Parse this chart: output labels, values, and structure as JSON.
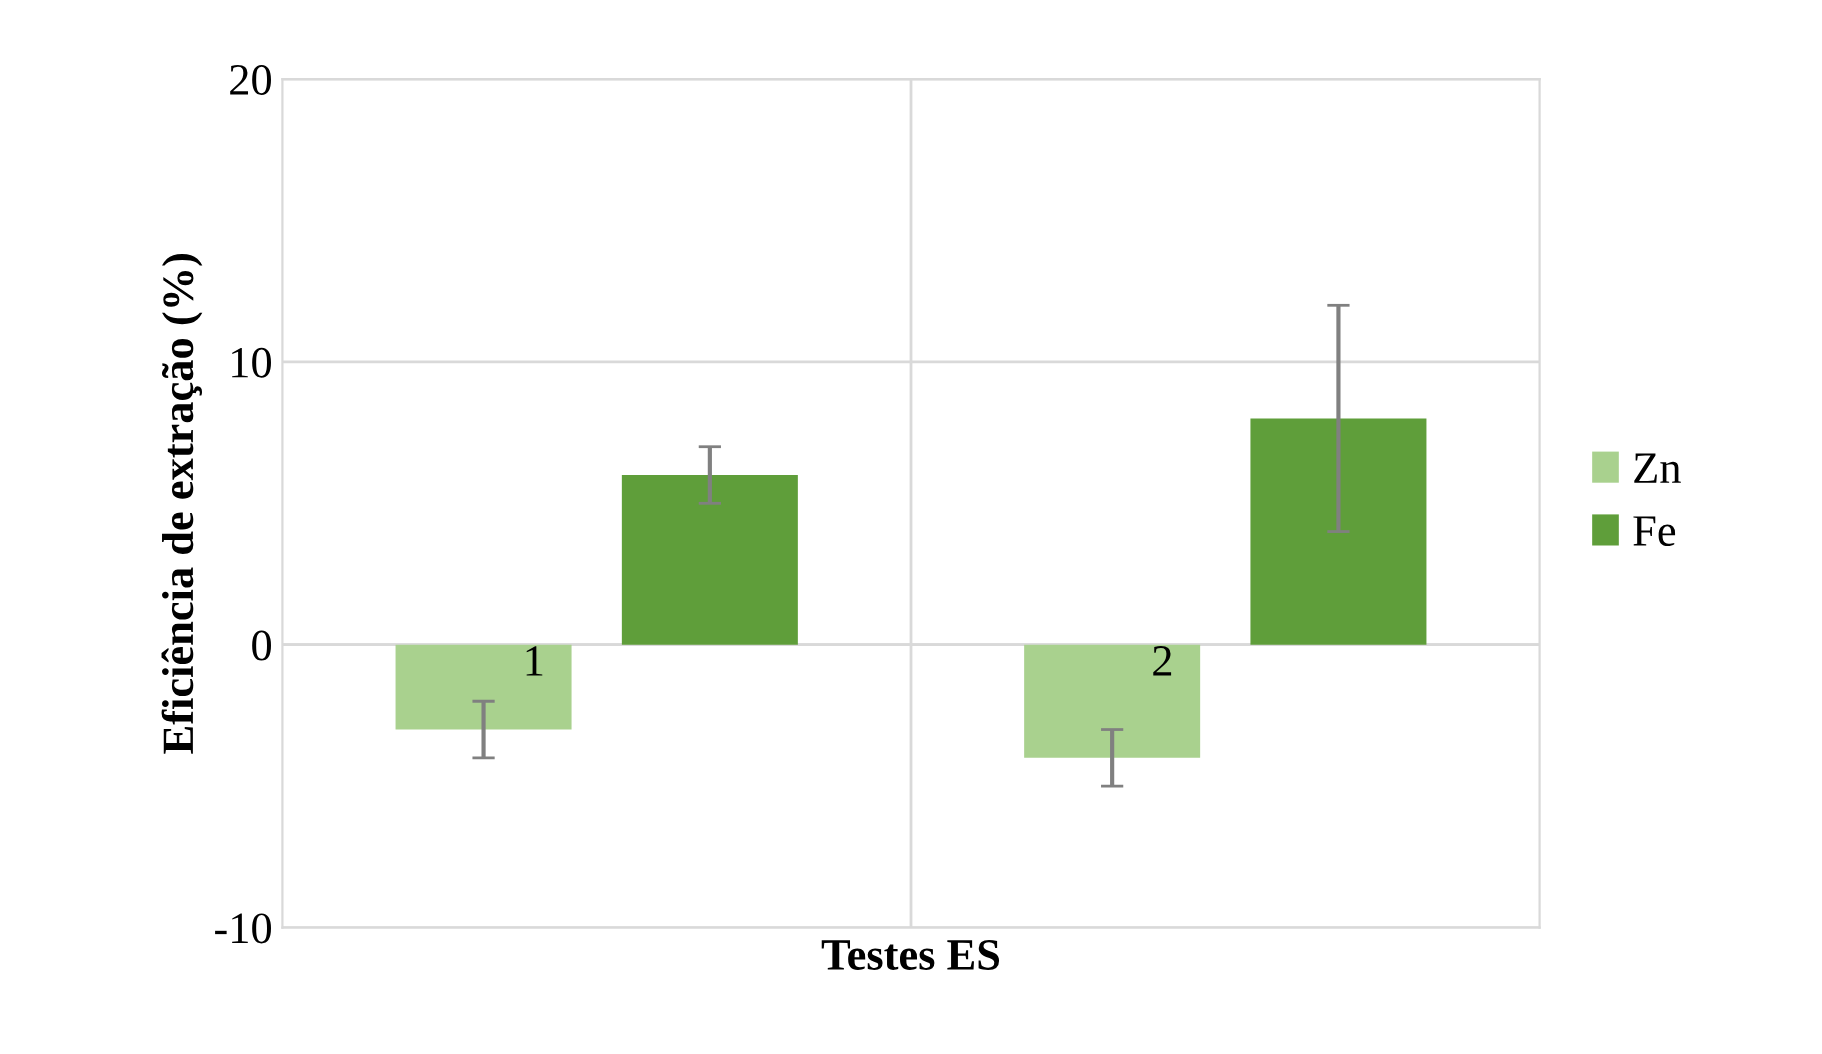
{
  "chart_data": {
    "type": "bar",
    "xlabel": "Testes ES",
    "ylabel": "Eficiência de extração (%)",
    "categories": [
      "1",
      "2"
    ],
    "series": [
      {
        "name": "Zn",
        "color": "#a9d18e",
        "values": [
          -3,
          -4
        ],
        "errors": [
          1,
          1
        ]
      },
      {
        "name": "Fe",
        "color": "#5f9e3a",
        "values": [
          6,
          8
        ],
        "errors": [
          1,
          4
        ]
      }
    ],
    "ylim": [
      -10,
      20
    ],
    "yticks": [
      -10,
      0,
      10,
      20
    ],
    "grid": true,
    "legend": "right"
  }
}
